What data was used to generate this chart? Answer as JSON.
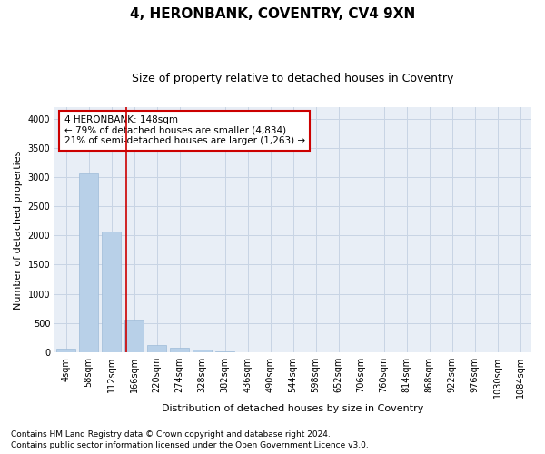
{
  "title": "4, HERONBANK, COVENTRY, CV4 9XN",
  "subtitle": "Size of property relative to detached houses in Coventry",
  "xlabel": "Distribution of detached houses by size in Coventry",
  "ylabel": "Number of detached properties",
  "categories": [
    "4sqm",
    "58sqm",
    "112sqm",
    "166sqm",
    "220sqm",
    "274sqm",
    "328sqm",
    "382sqm",
    "436sqm",
    "490sqm",
    "544sqm",
    "598sqm",
    "652sqm",
    "706sqm",
    "760sqm",
    "814sqm",
    "868sqm",
    "922sqm",
    "976sqm",
    "1030sqm",
    "1084sqm"
  ],
  "values": [
    60,
    3060,
    2060,
    560,
    130,
    80,
    50,
    10,
    5,
    0,
    0,
    0,
    0,
    0,
    0,
    0,
    0,
    0,
    0,
    0,
    0
  ],
  "bar_color": "#b8d0e8",
  "bar_edge_color": "#9dbbd8",
  "grid_color": "#c8d4e4",
  "background_color": "#e8eef6",
  "vline_color": "#cc0000",
  "annotation_text": "4 HERONBANK: 148sqm\n← 79% of detached houses are smaller (4,834)\n21% of semi-detached houses are larger (1,263) →",
  "annotation_box_facecolor": "#ffffff",
  "annotation_box_edgecolor": "#cc0000",
  "footer1": "Contains HM Land Registry data © Crown copyright and database right 2024.",
  "footer2": "Contains public sector information licensed under the Open Government Licence v3.0.",
  "ylim": [
    0,
    4200
  ],
  "yticks": [
    0,
    500,
    1000,
    1500,
    2000,
    2500,
    3000,
    3500,
    4000
  ],
  "title_fontsize": 11,
  "subtitle_fontsize": 9,
  "axis_label_fontsize": 8,
  "tick_fontsize": 7,
  "annotation_fontsize": 7.5,
  "footer_fontsize": 6.5
}
